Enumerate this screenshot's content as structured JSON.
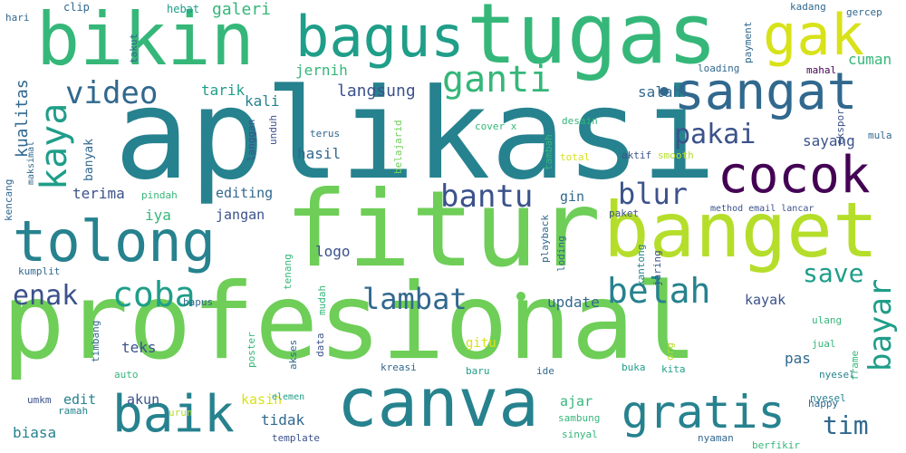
{
  "palette": {
    "dark_purple": "#440154",
    "deep_blue": "#3b528b",
    "slate": "#31688e",
    "teal": "#26828e",
    "aqua": "#1f9e89",
    "green": "#35b779",
    "lime": "#6ece58",
    "yellow_green": "#b5de2b",
    "yellow": "#d8e219",
    "background": "#ffffff"
  },
  "words": [
    {
      "text": "profesional",
      "color": "lime"
    },
    {
      "text": "aplikasi",
      "color": "teal"
    },
    {
      "text": "fitur",
      "color": "lime"
    },
    {
      "text": "tugas",
      "color": "green"
    },
    {
      "text": "bikin",
      "color": "green"
    },
    {
      "text": "bagus",
      "color": "aqua"
    },
    {
      "text": "gak",
      "color": "yellow"
    },
    {
      "text": "banget",
      "color": "yellow_green"
    },
    {
      "text": "tolong",
      "color": "teal"
    },
    {
      "text": "sangat",
      "color": "slate"
    },
    {
      "text": "cocok",
      "color": "dark_purple"
    },
    {
      "text": "canva",
      "color": "teal"
    },
    {
      "text": "baik",
      "color": "teal"
    },
    {
      "text": "gratis",
      "color": "teal"
    },
    {
      "text": "video",
      "color": "slate"
    },
    {
      "text": "ganti",
      "color": "green"
    },
    {
      "text": "kaya",
      "color": "aqua"
    },
    {
      "text": "pakai",
      "color": "deep_blue"
    },
    {
      "text": "blur",
      "color": "deep_blue"
    },
    {
      "text": "bantu",
      "color": "deep_blue"
    },
    {
      "text": "coba",
      "color": "aqua"
    },
    {
      "text": "belah",
      "color": "teal"
    },
    {
      "text": "lambat",
      "color": "slate"
    },
    {
      "text": "enak",
      "color": "deep_blue"
    },
    {
      "text": "save",
      "color": "aqua"
    },
    {
      "text": "bayar",
      "color": "aqua"
    },
    {
      "text": "tim",
      "color": "slate"
    },
    {
      "text": "langsung",
      "color": "deep_blue"
    },
    {
      "text": "galeri",
      "color": "green"
    },
    {
      "text": "jernih",
      "color": "green"
    },
    {
      "text": "kualitas",
      "color": "slate"
    },
    {
      "text": "tarik",
      "color": "aqua"
    },
    {
      "text": "kali",
      "color": "teal"
    },
    {
      "text": "salah",
      "color": "slate"
    },
    {
      "text": "cuman",
      "color": "green"
    },
    {
      "text": "sayang",
      "color": "deep_blue"
    },
    {
      "text": "hasil",
      "color": "slate"
    },
    {
      "text": "terus",
      "color": "slate"
    },
    {
      "text": "terima",
      "color": "deep_blue"
    },
    {
      "text": "editing",
      "color": "slate"
    },
    {
      "text": "iya",
      "color": "green"
    },
    {
      "text": "jangan",
      "color": "deep_blue"
    },
    {
      "text": "logo",
      "color": "deep_blue"
    },
    {
      "text": "update",
      "color": "slate"
    },
    {
      "text": "kayak",
      "color": "deep_blue"
    },
    {
      "text": "teks",
      "color": "deep_blue"
    },
    {
      "text": "pas",
      "color": "slate"
    },
    {
      "text": "edit",
      "color": "teal"
    },
    {
      "text": "akun",
      "color": "deep_blue"
    },
    {
      "text": "tidak",
      "color": "slate"
    },
    {
      "text": "kasih",
      "color": "yellow"
    },
    {
      "text": "ajar",
      "color": "green"
    },
    {
      "text": "biasa",
      "color": "teal"
    },
    {
      "text": "gitu",
      "color": "yellow"
    },
    {
      "text": "kreasi",
      "color": "slate"
    },
    {
      "text": "baru",
      "color": "aqua"
    },
    {
      "text": "ide",
      "color": "slate"
    },
    {
      "text": "nyesel",
      "color": "teal"
    },
    {
      "text": "banyak",
      "color": "slate"
    },
    {
      "text": "total",
      "color": "yellow"
    },
    {
      "text": "aktif",
      "color": "deep_blue"
    },
    {
      "text": "smooth",
      "color": "yellow_green"
    },
    {
      "text": "mula",
      "color": "slate"
    },
    {
      "text": "loading",
      "color": "slate"
    },
    {
      "text": "cover x",
      "color": "green"
    },
    {
      "text": "desain",
      "color": "green"
    },
    {
      "text": "method email lancar",
      "color": "deep_blue"
    },
    {
      "text": "paket",
      "color": "deep_blue"
    },
    {
      "text": "pindah",
      "color": "green"
    },
    {
      "text": "gin",
      "color": "slate"
    },
    {
      "text": "hebat",
      "color": "aqua"
    },
    {
      "text": "clip",
      "color": "slate"
    },
    {
      "text": "hari",
      "color": "slate"
    },
    {
      "text": "kadang",
      "color": "slate"
    },
    {
      "text": "gercep",
      "color": "slate"
    },
    {
      "text": "mahal",
      "color": "dark_purple"
    },
    {
      "text": "takut",
      "color": "slate"
    },
    {
      "text": "payment",
      "color": "slate"
    },
    {
      "text": "langgan",
      "color": "deep_blue"
    },
    {
      "text": "unduh",
      "color": "deep_blue"
    },
    {
      "text": "tambah",
      "color": "green"
    },
    {
      "text": "belajarid",
      "color": "lime"
    },
    {
      "text": "ekspor",
      "color": "deep_blue"
    },
    {
      "text": "kencang",
      "color": "slate"
    },
    {
      "text": "maksimal",
      "color": "slate"
    },
    {
      "text": "kumplit",
      "color": "slate"
    },
    {
      "text": "hapus",
      "color": "slate"
    },
    {
      "text": "mudah",
      "color": "green"
    },
    {
      "text": "happy",
      "color": "slate"
    },
    {
      "text": "ulang",
      "color": "green"
    },
    {
      "text": "jual",
      "color": "green"
    },
    {
      "text": "buka",
      "color": "aqua"
    },
    {
      "text": "kita",
      "color": "aqua"
    },
    {
      "text": "jaring",
      "color": "deep_blue"
    },
    {
      "text": "kantong",
      "color": "teal"
    },
    {
      "text": "loding",
      "color": "slate"
    },
    {
      "text": "playback",
      "color": "slate"
    },
    {
      "text": "tenang",
      "color": "green"
    },
    {
      "text": "data",
      "color": "deep_blue"
    },
    {
      "text": "akses",
      "color": "slate"
    },
    {
      "text": "poster",
      "color": "green"
    },
    {
      "text": "auto",
      "color": "green"
    },
    {
      "text": "timbang",
      "color": "slate"
    },
    {
      "text": "org",
      "color": "yellow_green"
    },
    {
      "text": "frame",
      "color": "green"
    },
    {
      "text": "umkm",
      "color": "deep_blue"
    },
    {
      "text": "ramah",
      "color": "teal"
    },
    {
      "text": "urun",
      "color": "yellow_green"
    },
    {
      "text": "elemen",
      "color": "aqua"
    },
    {
      "text": "sambung",
      "color": "green"
    },
    {
      "text": "template",
      "color": "deep_blue"
    },
    {
      "text": "sinyal",
      "color": "green"
    },
    {
      "text": "nyaman",
      "color": "slate"
    },
    {
      "text": "berfikir",
      "color": "green"
    }
  ]
}
